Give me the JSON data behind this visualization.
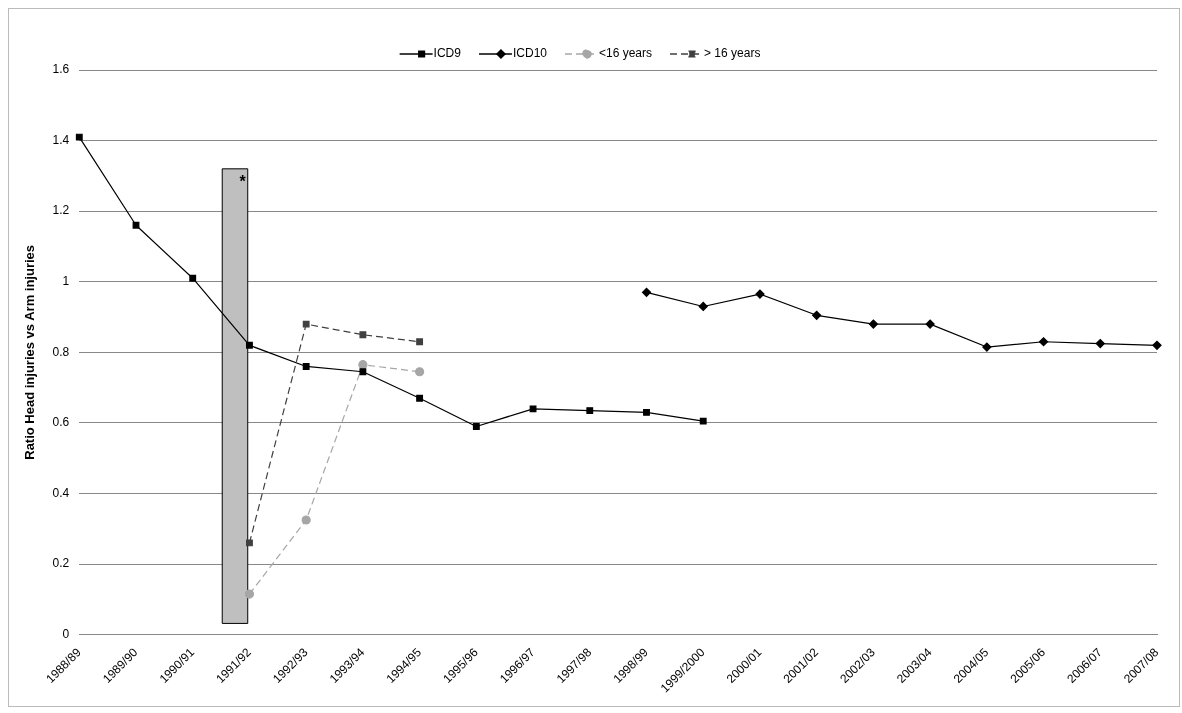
{
  "chart_data": {
    "type": "line",
    "ylabel": "Ratio Head injuries vs Arm injuries",
    "categories": [
      "1988/89",
      "1989/90",
      "1990/91",
      "1991/92",
      "1992/93",
      "1993/94",
      "1994/95",
      "1995/96",
      "1996/97",
      "1997/98",
      "1998/99",
      "1999/2000",
      "2000/01",
      "2001/02",
      "2002/03",
      "2003/04",
      "2004/05",
      "2005/06",
      "2006/07",
      "2007/08"
    ],
    "series": [
      {
        "name": "ICD9",
        "color": "#000000",
        "marker": "square",
        "line_style": "solid",
        "values": [
          1.41,
          1.16,
          1.01,
          0.82,
          0.76,
          0.745,
          0.67,
          0.59,
          0.64,
          0.635,
          0.63,
          0.605,
          null,
          null,
          null,
          null,
          null,
          null,
          null,
          null
        ]
      },
      {
        "name": "ICD10",
        "color": "#000000",
        "marker": "diamond",
        "line_style": "solid",
        "values": [
          null,
          null,
          null,
          null,
          null,
          null,
          null,
          null,
          null,
          null,
          0.97,
          0.93,
          0.965,
          0.905,
          0.88,
          0.88,
          0.815,
          0.83,
          0.825,
          0.82
        ]
      },
      {
        "name": "<16 years",
        "color": "#a6a6a6",
        "marker": "circle",
        "line_style": "dashed",
        "values": [
          null,
          null,
          null,
          0.115,
          0.325,
          0.765,
          0.745,
          null,
          null,
          null,
          null,
          null,
          null,
          null,
          null,
          null,
          null,
          null,
          null,
          null
        ]
      },
      {
        "name": "> 16 years",
        "color": "#404040",
        "marker": "square",
        "line_style": "dashed",
        "values": [
          null,
          null,
          null,
          0.26,
          0.88,
          0.85,
          0.83,
          null,
          null,
          null,
          null,
          null,
          null,
          null,
          null,
          null,
          null,
          null,
          null,
          null
        ]
      }
    ],
    "bands": [
      {
        "axis": "x",
        "from": "1991/92",
        "to": "1991/92",
        "label": "*",
        "color": "#bfbfbf"
      }
    ],
    "ylim": [
      0,
      1.6
    ],
    "yticks": [
      0,
      0.2,
      0.4,
      0.6,
      0.8,
      1,
      1.2,
      1.4,
      1.6
    ],
    "grid": "y",
    "legend": "top"
  }
}
